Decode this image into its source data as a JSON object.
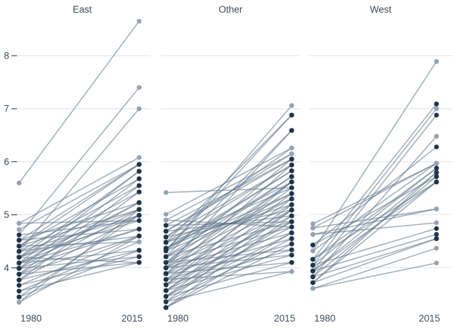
{
  "chart_data": {
    "type": "line",
    "subtype": "slopegraph",
    "title": "",
    "x_categories": [
      "1980",
      "2015"
    ],
    "y_ticks": [
      8,
      7,
      6,
      5,
      4
    ],
    "ylim": [
      3.1,
      8.8
    ],
    "grid": "horizontal",
    "legend": "none",
    "point_groups": {
      "d": "dark-navy",
      "l": "light-slate"
    },
    "colors": {
      "dark_point": "#20354b",
      "light_point": "#95a3b4",
      "line": "#5b7186",
      "gridline": "#dde3e9",
      "axis_text": "#3d4a5c"
    },
    "facets": [
      {
        "title": "East",
        "lines": [
          [
            5.6,
            8.65,
            "l"
          ],
          [
            4.62,
            7.4,
            "l"
          ],
          [
            4.31,
            7.0,
            "l"
          ],
          [
            4.84,
            6.08,
            "l"
          ],
          [
            4.72,
            5.95,
            "l"
          ],
          [
            4.52,
            5.95,
            "d"
          ],
          [
            4.41,
            5.95,
            "d"
          ],
          [
            4.2,
            5.82,
            "d"
          ],
          [
            4.09,
            5.82,
            "d"
          ],
          [
            4.41,
            5.68,
            "d"
          ],
          [
            3.99,
            5.68,
            "d"
          ],
          [
            4.31,
            5.55,
            "d"
          ],
          [
            3.88,
            5.55,
            "d"
          ],
          [
            4.2,
            5.43,
            "d"
          ],
          [
            3.77,
            5.43,
            "d"
          ],
          [
            4.52,
            5.23,
            "d"
          ],
          [
            4.09,
            5.23,
            "d"
          ],
          [
            3.99,
            5.23,
            "d"
          ],
          [
            4.41,
            5.1,
            "d"
          ],
          [
            4.2,
            5.1,
            "d"
          ],
          [
            3.88,
            5.1,
            "d"
          ],
          [
            3.35,
            5.1,
            "l"
          ],
          [
            4.31,
            4.99,
            "d"
          ],
          [
            4.09,
            4.99,
            "d"
          ],
          [
            3.77,
            4.99,
            "d"
          ],
          [
            3.45,
            4.99,
            "l"
          ],
          [
            4.84,
            4.89,
            "l"
          ],
          [
            4.62,
            4.89,
            "d"
          ],
          [
            4.2,
            4.89,
            "d"
          ],
          [
            4.52,
            4.73,
            "d"
          ],
          [
            4.09,
            4.73,
            "d"
          ],
          [
            3.99,
            4.73,
            "d"
          ],
          [
            4.31,
            4.6,
            "d"
          ],
          [
            3.88,
            4.6,
            "d"
          ],
          [
            3.67,
            4.6,
            "l"
          ],
          [
            3.35,
            4.6,
            "l"
          ],
          [
            4.41,
            4.49,
            "l"
          ],
          [
            3.56,
            4.49,
            "l"
          ],
          [
            4.09,
            4.33,
            "d"
          ],
          [
            3.77,
            4.33,
            "d"
          ],
          [
            3.45,
            4.33,
            "d"
          ],
          [
            3.99,
            4.21,
            "d"
          ],
          [
            3.67,
            4.21,
            "d"
          ],
          [
            4.2,
            4.1,
            "d"
          ],
          [
            3.88,
            4.1,
            "d"
          ],
          [
            3.56,
            4.1,
            "d"
          ]
        ]
      },
      {
        "title": "Other",
        "lines": [
          [
            5.42,
            5.51,
            "l"
          ],
          [
            4.32,
            7.06,
            "l"
          ],
          [
            4.48,
            6.88,
            "d"
          ],
          [
            4.32,
            6.88,
            "d"
          ],
          [
            4.21,
            6.59,
            "d"
          ],
          [
            4.0,
            6.59,
            "d"
          ],
          [
            5.01,
            6.26,
            "l"
          ],
          [
            4.58,
            6.26,
            "l"
          ],
          [
            4.9,
            6.15,
            "l"
          ],
          [
            4.69,
            6.15,
            "l"
          ],
          [
            4.8,
            6.05,
            "d"
          ],
          [
            4.1,
            6.05,
            "d"
          ],
          [
            4.69,
            6.05,
            "d"
          ],
          [
            4.58,
            5.94,
            "d"
          ],
          [
            4.48,
            5.94,
            "d"
          ],
          [
            3.89,
            5.94,
            "d"
          ],
          [
            4.37,
            5.83,
            "d"
          ],
          [
            4.32,
            5.83,
            "d"
          ],
          [
            4.21,
            5.72,
            "d"
          ],
          [
            4.1,
            5.72,
            "d"
          ],
          [
            4.0,
            5.62,
            "d"
          ],
          [
            3.89,
            5.62,
            "d"
          ],
          [
            3.68,
            5.62,
            "d"
          ],
          [
            4.37,
            5.62,
            "d"
          ],
          [
            4.48,
            5.51,
            "d"
          ],
          [
            3.78,
            5.51,
            "d"
          ],
          [
            4.37,
            5.4,
            "d"
          ],
          [
            3.68,
            5.4,
            "d"
          ],
          [
            4.21,
            5.4,
            "d"
          ],
          [
            4.1,
            5.3,
            "d"
          ],
          [
            3.57,
            5.3,
            "d"
          ],
          [
            4.32,
            5.3,
            "d"
          ],
          [
            4.0,
            5.19,
            "d"
          ],
          [
            3.46,
            5.19,
            "d"
          ],
          [
            4.48,
            5.19,
            "d"
          ],
          [
            3.89,
            5.09,
            "d"
          ],
          [
            3.36,
            5.09,
            "d"
          ],
          [
            4.58,
            5.09,
            "d"
          ],
          [
            3.57,
            5.09,
            "d"
          ],
          [
            3.78,
            4.98,
            "d"
          ],
          [
            3.25,
            4.98,
            "d"
          ],
          [
            4.69,
            4.98,
            "d"
          ],
          [
            3.68,
            4.87,
            "d"
          ],
          [
            4.21,
            4.87,
            "d"
          ],
          [
            4.8,
            4.87,
            "l"
          ],
          [
            3.46,
            4.87,
            "d"
          ],
          [
            3.57,
            4.77,
            "d"
          ],
          [
            4.1,
            4.77,
            "d"
          ],
          [
            4.9,
            4.77,
            "l"
          ],
          [
            3.46,
            4.66,
            "d"
          ],
          [
            4.0,
            4.66,
            "d"
          ],
          [
            3.25,
            4.66,
            "d"
          ],
          [
            3.89,
            4.55,
            "d"
          ],
          [
            3.36,
            4.55,
            "d"
          ],
          [
            3.78,
            4.45,
            "d"
          ],
          [
            3.25,
            4.45,
            "d"
          ],
          [
            3.68,
            4.34,
            "d"
          ],
          [
            4.1,
            4.34,
            "d"
          ],
          [
            3.57,
            4.24,
            "d"
          ],
          [
            4.0,
            4.24,
            "d"
          ],
          [
            3.46,
            4.1,
            "d"
          ],
          [
            3.89,
            4.1,
            "d"
          ],
          [
            3.36,
            3.93,
            "l"
          ],
          [
            3.78,
            3.93,
            "l"
          ]
        ]
      },
      {
        "title": "West",
        "lines": [
          [
            4.32,
            7.89,
            "l"
          ],
          [
            4.16,
            7.09,
            "d"
          ],
          [
            4.05,
            7.0,
            "l"
          ],
          [
            3.94,
            6.88,
            "d"
          ],
          [
            3.83,
            6.48,
            "l"
          ],
          [
            4.43,
            6.28,
            "d"
          ],
          [
            4.83,
            5.97,
            "l"
          ],
          [
            4.32,
            5.97,
            "l"
          ],
          [
            4.75,
            5.97,
            "l"
          ],
          [
            4.05,
            5.88,
            "d"
          ],
          [
            4.16,
            5.88,
            "d"
          ],
          [
            3.94,
            5.8,
            "d"
          ],
          [
            3.72,
            5.8,
            "d"
          ],
          [
            3.83,
            5.72,
            "d"
          ],
          [
            4.43,
            5.72,
            "d"
          ],
          [
            3.72,
            5.62,
            "d"
          ],
          [
            4.16,
            5.62,
            "d"
          ],
          [
            3.94,
            5.62,
            "d"
          ],
          [
            4.75,
            5.11,
            "l"
          ],
          [
            4.63,
            5.11,
            "l"
          ],
          [
            4.63,
            4.85,
            "l"
          ],
          [
            4.05,
            4.74,
            "d"
          ],
          [
            3.94,
            4.63,
            "d"
          ],
          [
            3.83,
            4.55,
            "d"
          ],
          [
            3.72,
            4.55,
            "d"
          ],
          [
            3.61,
            4.37,
            "l"
          ],
          [
            3.61,
            4.09,
            "l"
          ]
        ]
      }
    ]
  }
}
